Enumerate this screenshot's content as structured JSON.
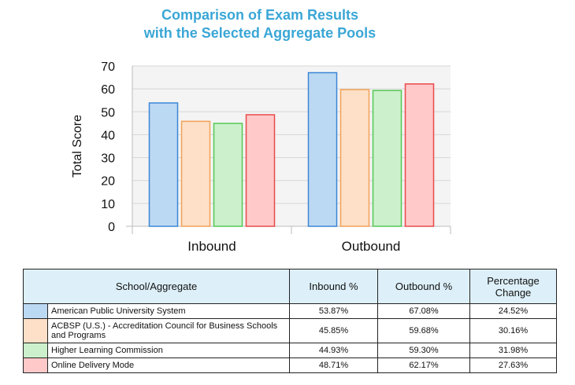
{
  "chart_data": {
    "type": "bar",
    "title_lines": [
      "Comparison of Exam Results",
      "with the Selected Aggregate Pools"
    ],
    "ylabel": "Total Score",
    "xlabel": "",
    "ylim": [
      0,
      70
    ],
    "yticks": [
      0,
      10,
      20,
      30,
      40,
      50,
      60,
      70
    ],
    "grid": true,
    "categories": [
      "Inbound",
      "Outbound"
    ],
    "series": [
      {
        "name": "American Public University System",
        "values": [
          53.87,
          67.08
        ],
        "fill": "#bcd9f3",
        "stroke": "#3b86d6"
      },
      {
        "name": "ACBSP (U.S.) - Accreditation Council for Business Schools and Programs",
        "values": [
          45.85,
          59.68
        ],
        "fill": "#fde0c7",
        "stroke": "#f3a157"
      },
      {
        "name": "Higher Learning Commission",
        "values": [
          44.93,
          59.3
        ],
        "fill": "#ccf0cc",
        "stroke": "#55c855"
      },
      {
        "name": "Online Delivery Mode",
        "values": [
          48.71,
          62.17
        ],
        "fill": "#ffc9c9",
        "stroke": "#e84a4a"
      }
    ]
  },
  "table": {
    "headers": [
      "School/Aggregate",
      "Inbound %",
      "Outbound %",
      "Percentage Change"
    ],
    "rows": [
      {
        "name": "American Public University System",
        "inbound": "53.87%",
        "outbound": "67.08%",
        "change": "24.52%"
      },
      {
        "name": "ACBSP (U.S.) - Accreditation Council for Business Schools and Programs",
        "inbound": "45.85%",
        "outbound": "59.68%",
        "change": "30.16%"
      },
      {
        "name": "Higher Learning Commission",
        "inbound": "44.93%",
        "outbound": "59.30%",
        "change": "31.98%"
      },
      {
        "name": "Online Delivery Mode",
        "inbound": "48.71%",
        "outbound": "62.17%",
        "change": "27.63%"
      }
    ]
  }
}
